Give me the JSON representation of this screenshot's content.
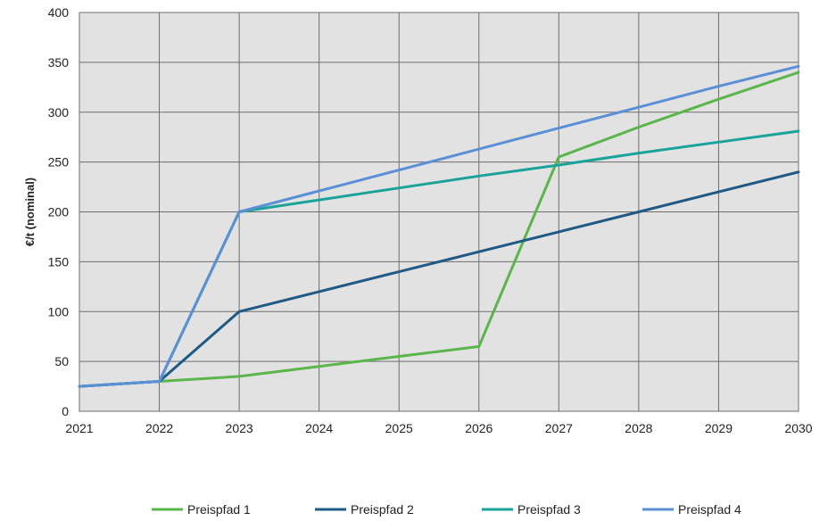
{
  "chart_data": {
    "type": "line",
    "title": "",
    "xlabel": "",
    "ylabel": "€/t (nominal)",
    "x": [
      "2021",
      "2022",
      "2023",
      "2024",
      "2025",
      "2026",
      "2027",
      "2028",
      "2029",
      "2030"
    ],
    "ylim": [
      0,
      400
    ],
    "yticks": [
      0,
      50,
      100,
      150,
      200,
      250,
      300,
      350,
      400
    ],
    "grid": true,
    "legend_position": "bottom",
    "series": [
      {
        "name": "Preispfad 1",
        "color": "#5ab54a",
        "values": [
          25,
          30,
          35,
          45,
          55,
          65,
          255,
          285,
          313,
          340
        ]
      },
      {
        "name": "Preispfad 2",
        "color": "#1e5a86",
        "values": [
          25,
          30,
          100,
          120,
          140,
          160,
          180,
          200,
          220,
          240
        ]
      },
      {
        "name": "Preispfad 3",
        "color": "#1aa39a",
        "values": [
          25,
          30,
          200,
          212,
          224,
          236,
          247,
          259,
          270,
          281
        ]
      },
      {
        "name": "Preispfad 4",
        "color": "#5b8fd6",
        "values": [
          25,
          30,
          200,
          221,
          242,
          263,
          284,
          305,
          326,
          346
        ]
      }
    ]
  }
}
